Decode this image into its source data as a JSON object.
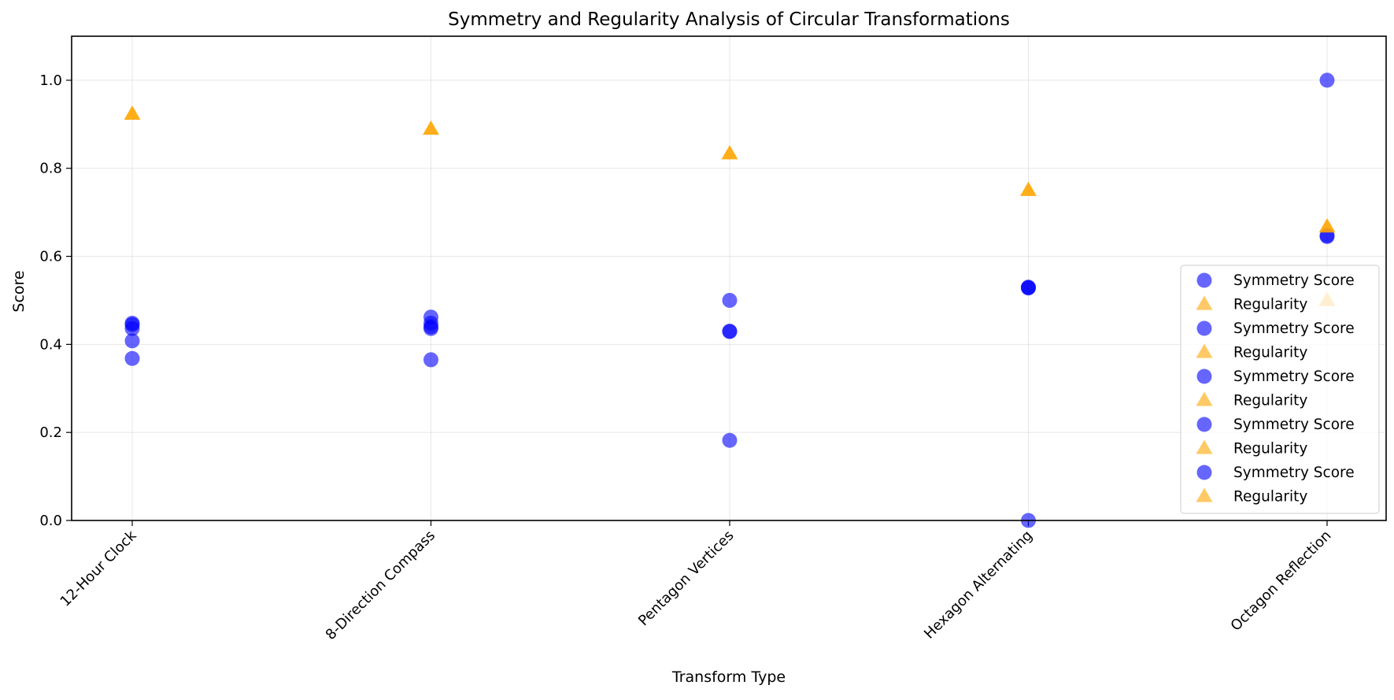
{
  "chart_data": {
    "type": "scatter",
    "title": "Symmetry and Regularity Analysis of Circular Transformations",
    "xlabel": "Transform Type",
    "ylabel": "Score",
    "categories": [
      "12-Hour Clock",
      "8-Direction Compass",
      "Pentagon Vertices",
      "Hexagon Alternating",
      "Octagon Reflection"
    ],
    "ylim": [
      0.0,
      1.1
    ],
    "yticks": [
      "0.0",
      "0.2",
      "0.4",
      "0.6",
      "0.8",
      "1.0"
    ],
    "grid": true,
    "legend_position": "lower-right",
    "colors": {
      "symmetry": "#0000ff",
      "regularity": "#ffa500"
    },
    "series": [
      {
        "name": "Symmetry Score",
        "marker": "circle",
        "color": "#0000ff",
        "points": [
          {
            "category": "12-Hour Clock",
            "y": 0.448
          },
          {
            "category": "12-Hour Clock",
            "y": 0.436
          },
          {
            "category": "12-Hour Clock",
            "y": 0.408
          },
          {
            "category": "12-Hour Clock",
            "y": 0.368
          },
          {
            "category": "12-Hour Clock",
            "y": 0.445
          },
          {
            "category": "8-Direction Compass",
            "y": 0.462
          },
          {
            "category": "8-Direction Compass",
            "y": 0.448
          },
          {
            "category": "8-Direction Compass",
            "y": 0.436
          },
          {
            "category": "8-Direction Compass",
            "y": 0.365
          },
          {
            "category": "8-Direction Compass",
            "y": 0.44
          },
          {
            "category": "Pentagon Vertices",
            "y": 0.5
          },
          {
            "category": "Pentagon Vertices",
            "y": 0.429
          },
          {
            "category": "Pentagon Vertices",
            "y": 0.43
          },
          {
            "category": "Pentagon Vertices",
            "y": 0.182
          },
          {
            "category": "Hexagon Alternating",
            "y": 0.529
          },
          {
            "category": "Hexagon Alternating",
            "y": 0.53
          },
          {
            "category": "Hexagon Alternating",
            "y": 0.0
          },
          {
            "category": "Hexagon Alternating",
            "y": 0.528
          },
          {
            "category": "Octagon Reflection",
            "y": 1.0
          },
          {
            "category": "Octagon Reflection",
            "y": 0.645
          },
          {
            "category": "Octagon Reflection",
            "y": 0.647
          }
        ]
      },
      {
        "name": "Regularity",
        "marker": "triangle",
        "color": "#ffa500",
        "points": [
          {
            "category": "12-Hour Clock",
            "y": 0.923
          },
          {
            "category": "8-Direction Compass",
            "y": 0.889
          },
          {
            "category": "Pentagon Vertices",
            "y": 0.833
          },
          {
            "category": "Hexagon Alternating",
            "y": 0.75
          },
          {
            "category": "Octagon Reflection",
            "y": 0.667
          },
          {
            "category": "Octagon Reflection",
            "y": 0.5
          }
        ]
      }
    ],
    "legend": [
      {
        "label": "Symmetry Score",
        "marker": "circle"
      },
      {
        "label": "Regularity",
        "marker": "triangle"
      },
      {
        "label": "Symmetry Score",
        "marker": "circle"
      },
      {
        "label": "Regularity",
        "marker": "triangle"
      },
      {
        "label": "Symmetry Score",
        "marker": "circle"
      },
      {
        "label": "Regularity",
        "marker": "triangle"
      },
      {
        "label": "Symmetry Score",
        "marker": "circle"
      },
      {
        "label": "Regularity",
        "marker": "triangle"
      },
      {
        "label": "Symmetry Score",
        "marker": "circle"
      },
      {
        "label": "Regularity",
        "marker": "triangle"
      }
    ]
  }
}
